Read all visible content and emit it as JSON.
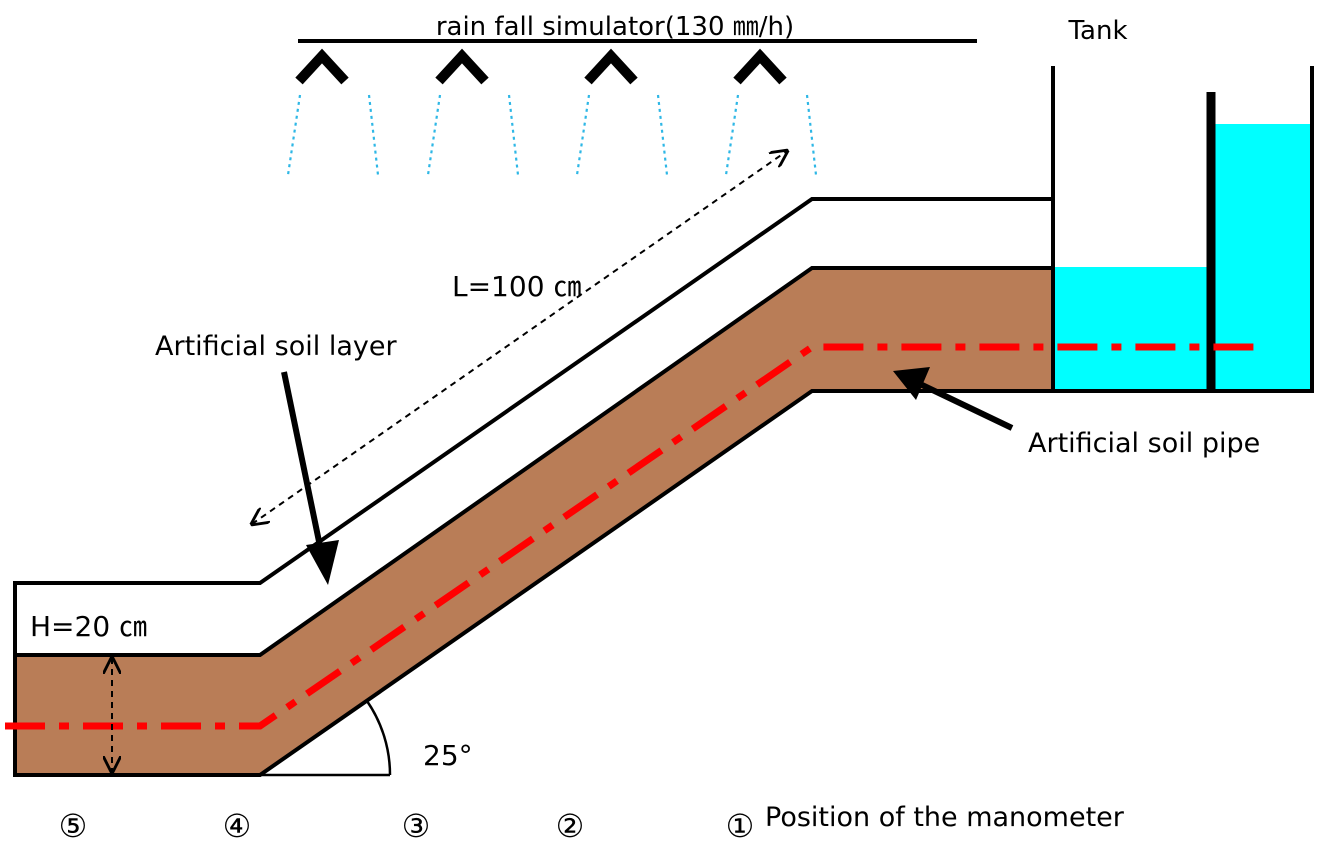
{
  "labels": {
    "rainfall": "rain fall simulator(130 ㎜/h)",
    "tank": "Tank",
    "length": "L=100 ㎝",
    "soil_layer": "Artificial soil layer",
    "soil_pipe": "Artificial soil pipe",
    "height": "H=20 ㎝",
    "angle": "25°",
    "manometer_caption": "Position of the manometer"
  },
  "manometer_positions": [
    "⑤",
    "④",
    "③",
    "②",
    "①"
  ],
  "colors": {
    "soil": "#b97d57",
    "water": "#00ffff",
    "axis_line": "#ff0000",
    "spray": "#2eb7e6",
    "outline": "#000000"
  }
}
